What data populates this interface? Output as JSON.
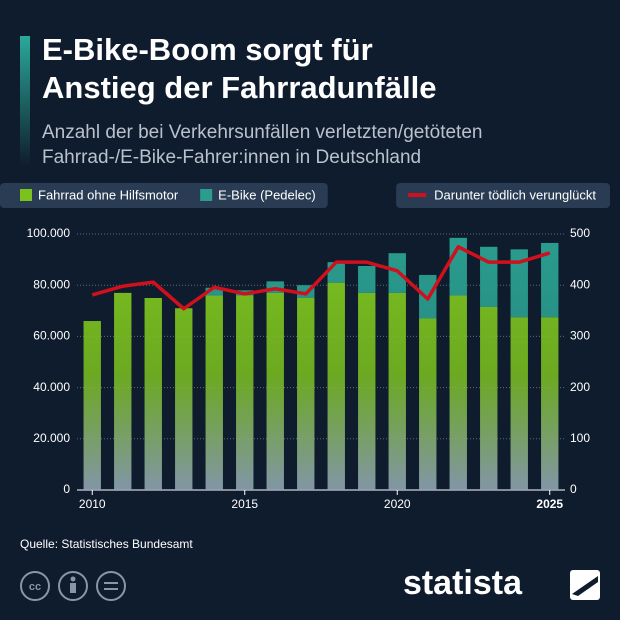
{
  "chart_data": {
    "type": "bar",
    "title": [
      "E-Bike-Boom sorgt für",
      "Anstieg der Fahrradunfälle"
    ],
    "subtitle": [
      "Anzahl der bei Verkehrsunfällen verletzten/getöteten",
      "Fahrrad-/E-Bike-Fahrer:innen in Deutschland"
    ],
    "x": [
      2010,
      2011,
      2012,
      2013,
      2014,
      2015,
      2016,
      2017,
      2018,
      2019,
      2020,
      2021,
      2022,
      2023,
      2024,
      2025
    ],
    "xlim": [
      2009.5,
      2025.5
    ],
    "xticks": [
      2010,
      2015,
      2020,
      2025
    ],
    "ylim": [
      0,
      100000
    ],
    "yticks": [
      0,
      {
        "value": 20000,
        "label": "20.000"
      },
      {
        "value": 40000,
        "label": "40.000"
      },
      {
        "value": 60000,
        "label": "60.000"
      },
      {
        "value": 80000,
        "label": "80.000"
      },
      {
        "value": 100000,
        "label": "100.000"
      }
    ],
    "y2lim": [
      0,
      500
    ],
    "y2ticks": [
      0,
      100,
      200,
      300,
      400,
      500
    ],
    "grid": true,
    "stacked": true,
    "legend": "top",
    "series": [
      {
        "name": "Fahrrad ohne Hilfsmotor",
        "color": "#7cc21f",
        "values": [
          66000,
          77000,
          75000,
          71000,
          76000,
          76000,
          77000,
          75000,
          81000,
          77000,
          77000,
          67000,
          76000,
          71500,
          67500,
          67500
        ]
      },
      {
        "name": "E-Bike (Pedelec)",
        "color": "#2a9d8f",
        "values": [
          0,
          0,
          0,
          0,
          3000,
          2000,
          4500,
          5000,
          8000,
          10500,
          15500,
          17000,
          22500,
          23500,
          26500,
          29000
        ]
      },
      {
        "name": "Darunter tödlich verunglückt",
        "color": "#d0101c",
        "type": "line",
        "axis": "y2",
        "values": [
          381,
          398,
          406,
          354,
          396,
          383,
          393,
          383,
          445,
          445,
          428,
          373,
          475,
          445,
          445,
          463
        ]
      }
    ],
    "source": "Quelle: Statistisches Bundesamt",
    "brand": "statista"
  }
}
